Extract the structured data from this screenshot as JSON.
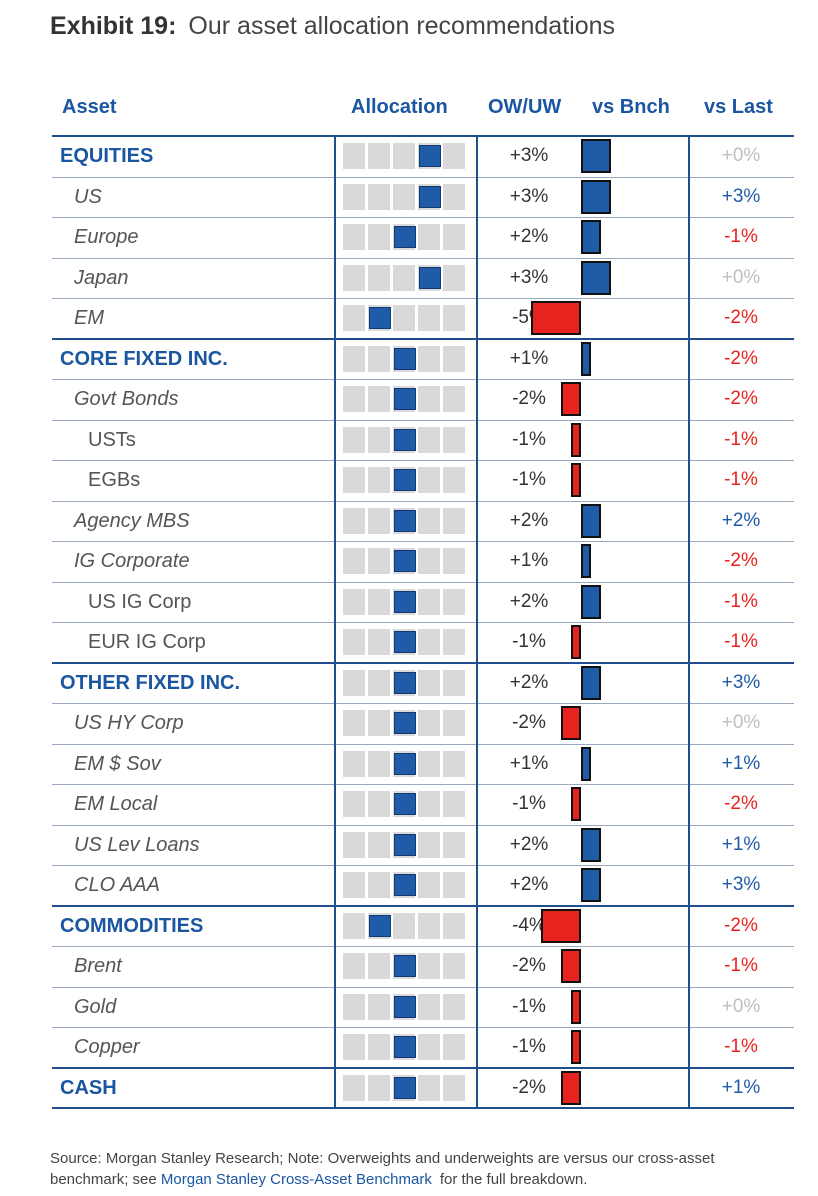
{
  "exhibit": {
    "number": "Exhibit 19:",
    "title": "Our asset allocation recommendations"
  },
  "headers": {
    "asset": "Asset",
    "allocation": "Allocation",
    "owuw": "OW/UW",
    "vs_bench": "vs Bnch",
    "vs_last": "vs Last"
  },
  "colors": {
    "header_blue": "#1b56a0",
    "positive_blue": "#1f5ba6",
    "negative_red": "#e8221e",
    "flat_gray": "#bfbfbf",
    "cell_gray": "#d9d9d9"
  },
  "chart_data": {
    "type": "table",
    "columns": [
      "Asset",
      "Allocation",
      "OW/UW",
      "vs Bnch",
      "vs Last"
    ],
    "allocation_scale": {
      "positions": 5,
      "neutral_position": 3
    },
    "rows": [
      {
        "name": "EQUITIES",
        "level": 0,
        "allocation": 4,
        "owuw": "+3%",
        "owuw_value": 3,
        "vs_last": "+0%",
        "vs_last_value": 0
      },
      {
        "name": "US",
        "level": 1,
        "allocation": 4,
        "owuw": "+3%",
        "owuw_value": 3,
        "vs_last": "+3%",
        "vs_last_value": 3
      },
      {
        "name": "Europe",
        "level": 1,
        "allocation": 3,
        "owuw": "+2%",
        "owuw_value": 2,
        "vs_last": "-1%",
        "vs_last_value": -1
      },
      {
        "name": "Japan",
        "level": 1,
        "allocation": 4,
        "owuw": "+3%",
        "owuw_value": 3,
        "vs_last": "+0%",
        "vs_last_value": 0
      },
      {
        "name": "EM",
        "level": 1,
        "allocation": 2,
        "owuw": "-5%",
        "owuw_value": -5,
        "vs_last": "-2%",
        "vs_last_value": -2
      },
      {
        "name": "CORE FIXED INC.",
        "level": 0,
        "allocation": 3,
        "owuw": "+1%",
        "owuw_value": 1,
        "vs_last": "-2%",
        "vs_last_value": -2
      },
      {
        "name": "Govt Bonds",
        "level": 1,
        "allocation": 3,
        "owuw": "-2%",
        "owuw_value": -2,
        "vs_last": "-2%",
        "vs_last_value": -2
      },
      {
        "name": "USTs",
        "level": 2,
        "allocation": 3,
        "owuw": "-1%",
        "owuw_value": -1,
        "vs_last": "-1%",
        "vs_last_value": -1
      },
      {
        "name": "EGBs",
        "level": 2,
        "allocation": 3,
        "owuw": "-1%",
        "owuw_value": -1,
        "vs_last": "-1%",
        "vs_last_value": -1
      },
      {
        "name": "Agency MBS",
        "level": 1,
        "allocation": 3,
        "owuw": "+2%",
        "owuw_value": 2,
        "vs_last": "+2%",
        "vs_last_value": 2
      },
      {
        "name": "IG Corporate",
        "level": 1,
        "allocation": 3,
        "owuw": "+1%",
        "owuw_value": 1,
        "vs_last": "-2%",
        "vs_last_value": -2
      },
      {
        "name": "US IG Corp",
        "level": 2,
        "allocation": 3,
        "owuw": "+2%",
        "owuw_value": 2,
        "vs_last": "-1%",
        "vs_last_value": -1
      },
      {
        "name": "EUR IG Corp",
        "level": 2,
        "allocation": 3,
        "owuw": "-1%",
        "owuw_value": -1,
        "vs_last": "-1%",
        "vs_last_value": -1
      },
      {
        "name": "OTHER FIXED INC.",
        "level": 0,
        "allocation": 3,
        "owuw": "+2%",
        "owuw_value": 2,
        "vs_last": "+3%",
        "vs_last_value": 3
      },
      {
        "name": "US HY Corp",
        "level": 1,
        "allocation": 3,
        "owuw": "-2%",
        "owuw_value": -2,
        "vs_last": "+0%",
        "vs_last_value": 0
      },
      {
        "name": "EM $ Sov",
        "level": 1,
        "allocation": 3,
        "owuw": "+1%",
        "owuw_value": 1,
        "vs_last": "+1%",
        "vs_last_value": 1
      },
      {
        "name": "EM Local",
        "level": 1,
        "allocation": 3,
        "owuw": "-1%",
        "owuw_value": -1,
        "vs_last": "-2%",
        "vs_last_value": -2
      },
      {
        "name": "US Lev Loans",
        "level": 1,
        "allocation": 3,
        "owuw": "+2%",
        "owuw_value": 2,
        "vs_last": "+1%",
        "vs_last_value": 1
      },
      {
        "name": "CLO AAA",
        "level": 1,
        "allocation": 3,
        "owuw": "+2%",
        "owuw_value": 2,
        "vs_last": "+3%",
        "vs_last_value": 3
      },
      {
        "name": "COMMODITIES",
        "level": 0,
        "allocation": 2,
        "owuw": "-4%",
        "owuw_value": -4,
        "vs_last": "-2%",
        "vs_last_value": -2
      },
      {
        "name": "Brent",
        "level": 1,
        "allocation": 3,
        "owuw": "-2%",
        "owuw_value": -2,
        "vs_last": "-1%",
        "vs_last_value": -1
      },
      {
        "name": "Gold",
        "level": 1,
        "allocation": 3,
        "owuw": "-1%",
        "owuw_value": -1,
        "vs_last": "+0%",
        "vs_last_value": 0
      },
      {
        "name": "Copper",
        "level": 1,
        "allocation": 3,
        "owuw": "-1%",
        "owuw_value": -1,
        "vs_last": "-1%",
        "vs_last_value": -1
      },
      {
        "name": "CASH",
        "level": 0,
        "allocation": 3,
        "owuw": "-2%",
        "owuw_value": -2,
        "vs_last": "+1%",
        "vs_last_value": 1
      }
    ]
  },
  "note": {
    "text": "Source: Morgan Stanley Research; Note: Overweights and underweights are versus our cross-asset benchmark; see",
    "link": "Morgan Stanley Cross-Asset Benchmark",
    "tail": "for the full breakdown."
  }
}
